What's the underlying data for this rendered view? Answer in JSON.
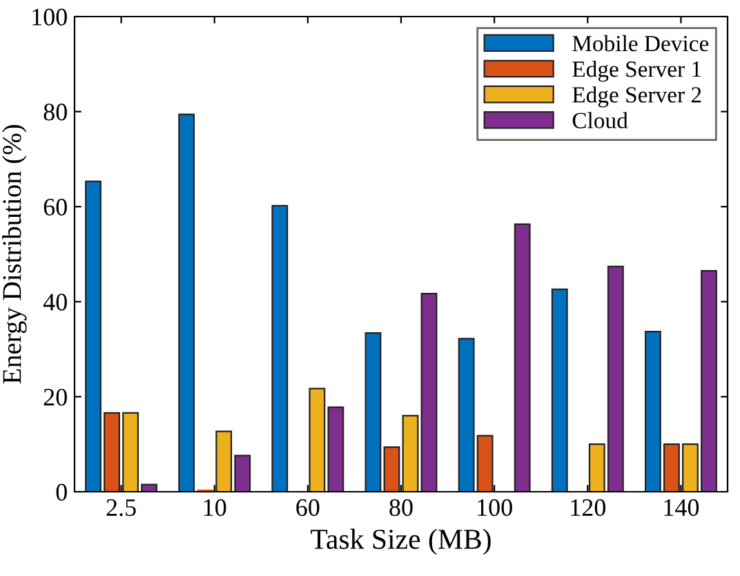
{
  "chart_data": {
    "type": "bar",
    "xlabel": "Task Size (MB)",
    "ylabel": "Energy Distribution (%)",
    "categories": [
      "2.5",
      "10",
      "60",
      "80",
      "100",
      "120",
      "140"
    ],
    "series": [
      {
        "name": "Mobile Device",
        "color": "#0072bd",
        "values": [
          65.3,
          79.4,
          60.2,
          33.4,
          32.2,
          42.6,
          33.7
        ]
      },
      {
        "name": "Edge Server 1",
        "color": "#d95319",
        "values": [
          16.6,
          0.3,
          0,
          9.4,
          11.8,
          0,
          10
        ]
      },
      {
        "name": "Edge Server 2",
        "color": "#edb120",
        "values": [
          16.6,
          12.7,
          21.7,
          16,
          0,
          10,
          10
        ]
      },
      {
        "name": "Cloud",
        "color": "#7e2f8e",
        "values": [
          1.5,
          7.6,
          17.8,
          41.7,
          56.3,
          47.4,
          46.5
        ]
      }
    ],
    "ylim": [
      0,
      100
    ],
    "yticks": [
      0,
      20,
      40,
      60,
      80,
      100
    ],
    "grid": false,
    "legend": "top right"
  }
}
